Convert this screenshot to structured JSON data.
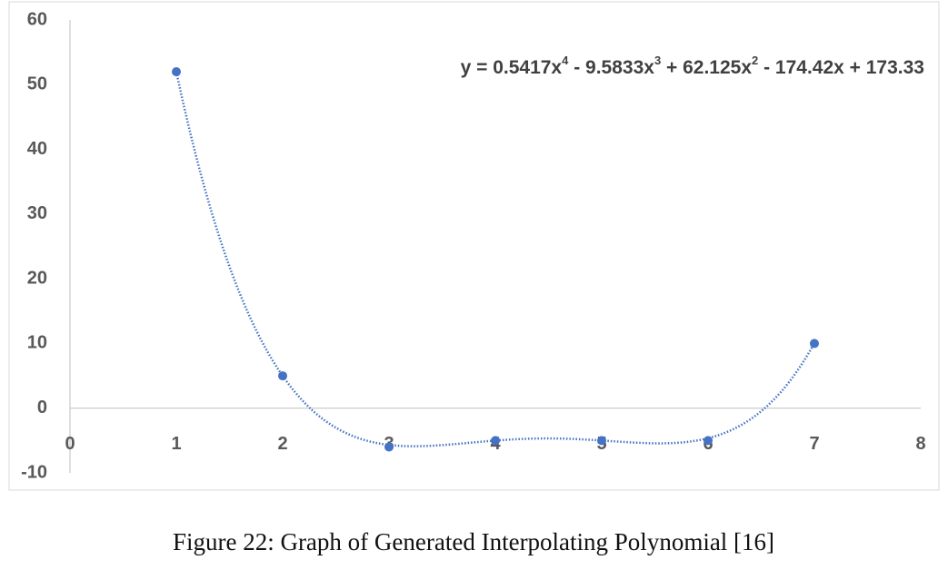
{
  "chart_data": {
    "type": "scatter",
    "caption": "Figure 22: Graph of Generated Interpolating Polynomial [16]",
    "x": [
      1,
      2,
      3,
      4,
      5,
      6,
      7
    ],
    "values": [
      52,
      5,
      -6,
      -5,
      -5,
      -5,
      10
    ],
    "color": "#4472c4",
    "xlim": [
      0,
      8
    ],
    "xticks": [
      0,
      1,
      2,
      3,
      4,
      5,
      6,
      7,
      8
    ],
    "ylim": [
      -10,
      60
    ],
    "yticks": [
      -10,
      0,
      10,
      20,
      30,
      40,
      50,
      60
    ],
    "trendline": {
      "equation": [
        "y = 0.5417x",
        "4",
        " - 9.5833x",
        "3",
        " + 62.125x",
        "2",
        " - 174.42x + 173.33"
      ],
      "coefficients": [
        0.5417,
        -9.5833,
        62.125,
        -174.42,
        173.33
      ]
    }
  }
}
